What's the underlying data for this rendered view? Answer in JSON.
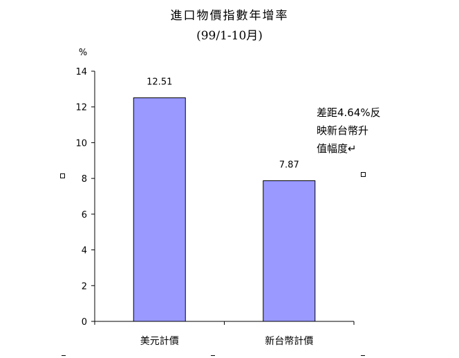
{
  "chart_data": {
    "type": "bar",
    "title": "進口物價指數年增率",
    "subtitle": "(99/1-10月)",
    "ylabel": "%",
    "xlabel": "",
    "categories": [
      "美元計價",
      "新台幣計價"
    ],
    "values": [
      12.51,
      7.87
    ],
    "data_labels": [
      "12.51",
      "7.87"
    ],
    "ylim": [
      0,
      14
    ],
    "yticks": [
      "0",
      "2",
      "4",
      "6",
      "8",
      "10",
      "12",
      "14"
    ],
    "grid": false,
    "bar_color": "#9999FF",
    "annotation": "差距4.64%反\n映新台幣升\n值幅度↵"
  }
}
